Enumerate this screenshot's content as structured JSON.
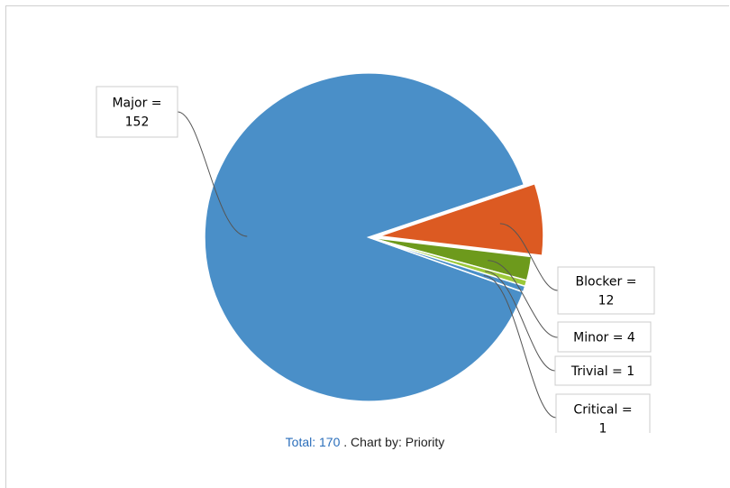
{
  "chart_data": {
    "type": "pie",
    "slices": [
      {
        "name": "Major",
        "value": 152,
        "color": "#4a8fc8",
        "label_lines": [
          "Major =",
          "152"
        ]
      },
      {
        "name": "Blocker",
        "value": 12,
        "color": "#dc5a22",
        "label_lines": [
          "Blocker =",
          "12"
        ]
      },
      {
        "name": "Minor",
        "value": 4,
        "color": "#6d9a1c",
        "label_lines": [
          "Minor = 4"
        ]
      },
      {
        "name": "Trivial",
        "value": 1,
        "color": "#9cc93a",
        "label_lines": [
          "Trivial = 1"
        ]
      },
      {
        "name": "Critical",
        "value": 1,
        "color": "#4a8fc8",
        "label_lines": [
          "Critical =",
          "1"
        ]
      }
    ]
  },
  "footer": {
    "total_label": "Total: 170",
    "chart_by": ". Chart by: Priority"
  }
}
